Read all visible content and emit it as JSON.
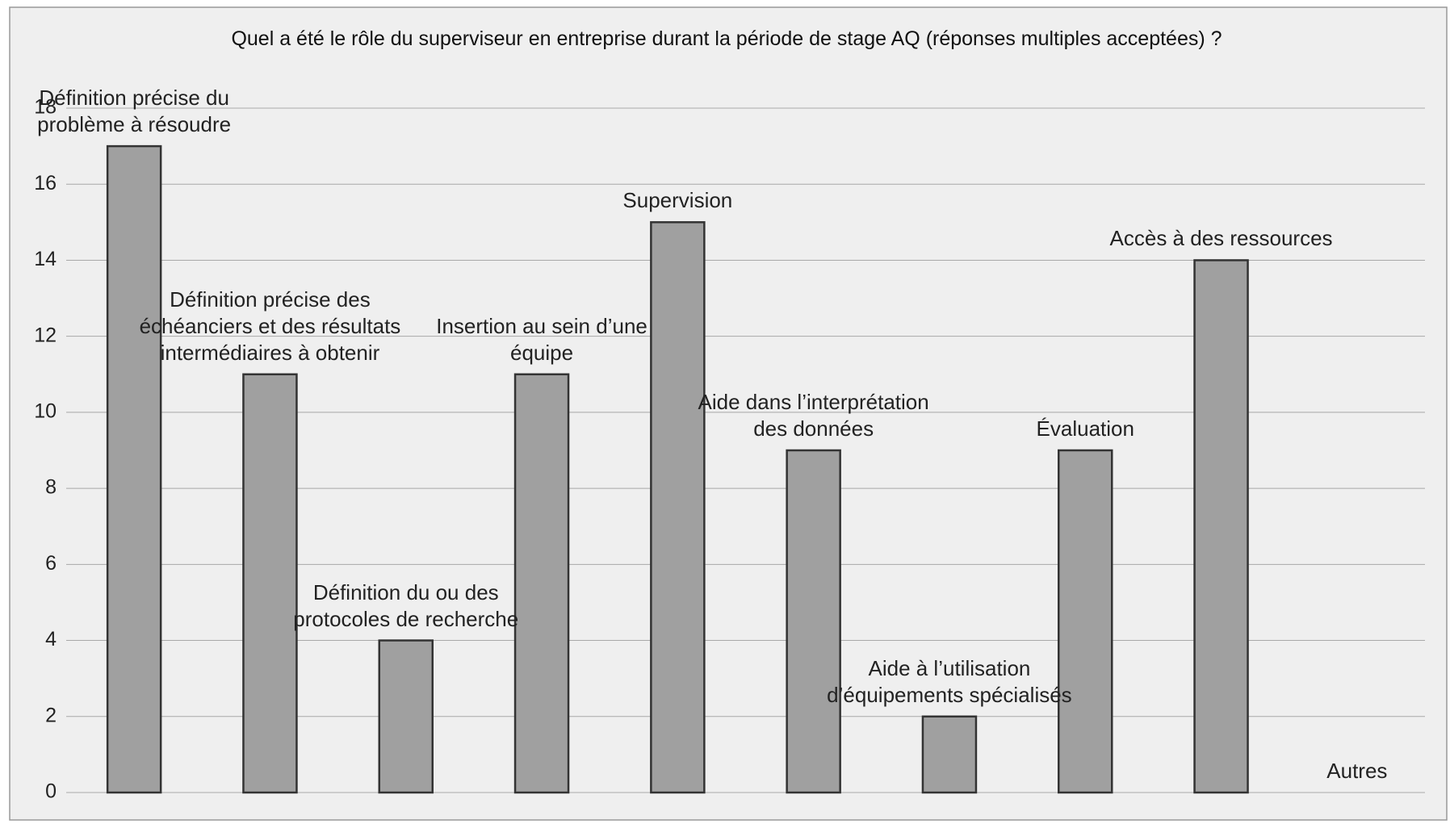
{
  "chart_data": {
    "type": "bar",
    "title": "Quel a été le rôle du superviseur en entreprise durant la période de stage AQ (réponses multiples acceptées) ?",
    "categories": [
      "Définition précise du problème à résoudre",
      "Définition précise des échéanciers et des résultats intermédiaires à obtenir",
      "Définition du ou des protocoles de recherche",
      "Insertion au sein d’une équipe",
      "Supervision",
      "Aide dans l’interprétation des données",
      "Aide à l’utilisation d’équipements spécialisés",
      "Évaluation",
      "Accès à des ressources",
      "Autres"
    ],
    "values": [
      17,
      11,
      4,
      11,
      15,
      9,
      2,
      9,
      14,
      0
    ],
    "color": "#a0a0a0",
    "ylim": [
      0,
      18
    ],
    "yticks": [
      0,
      2,
      4,
      6,
      8,
      10,
      12,
      14,
      16,
      18
    ],
    "grid": true
  }
}
